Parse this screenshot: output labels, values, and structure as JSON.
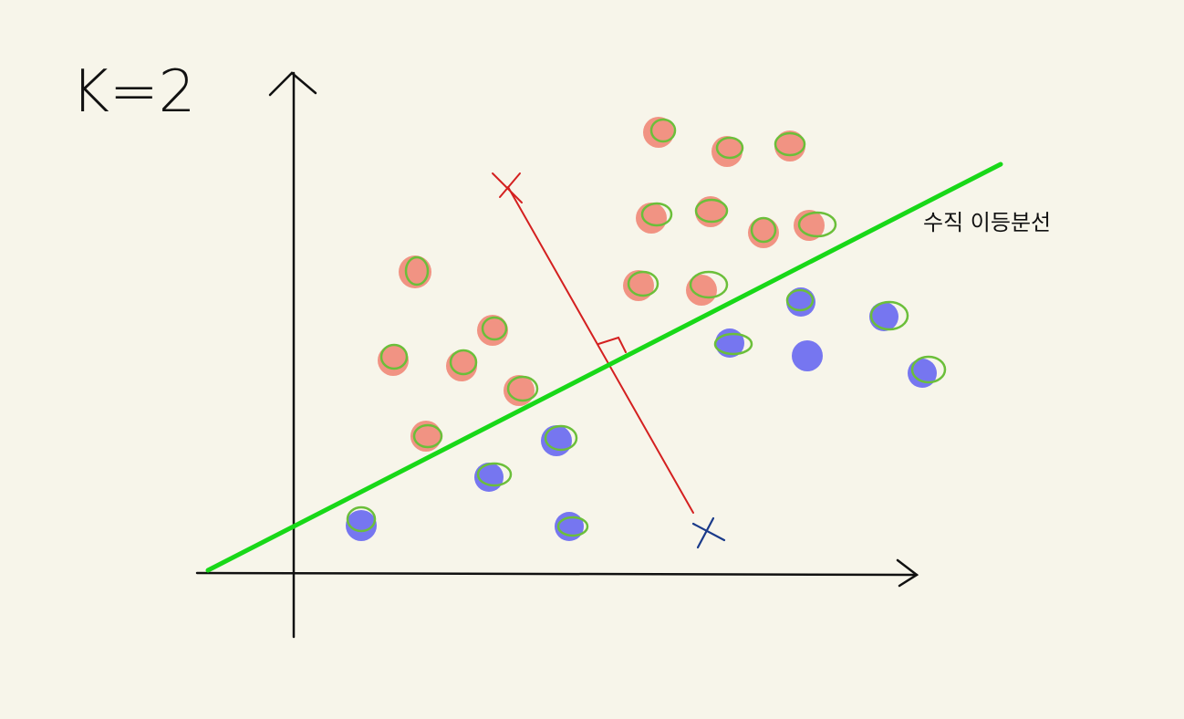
{
  "header": {
    "title": "K=2"
  },
  "annotations": {
    "bisector_label": "수직 이등분선"
  }
}
